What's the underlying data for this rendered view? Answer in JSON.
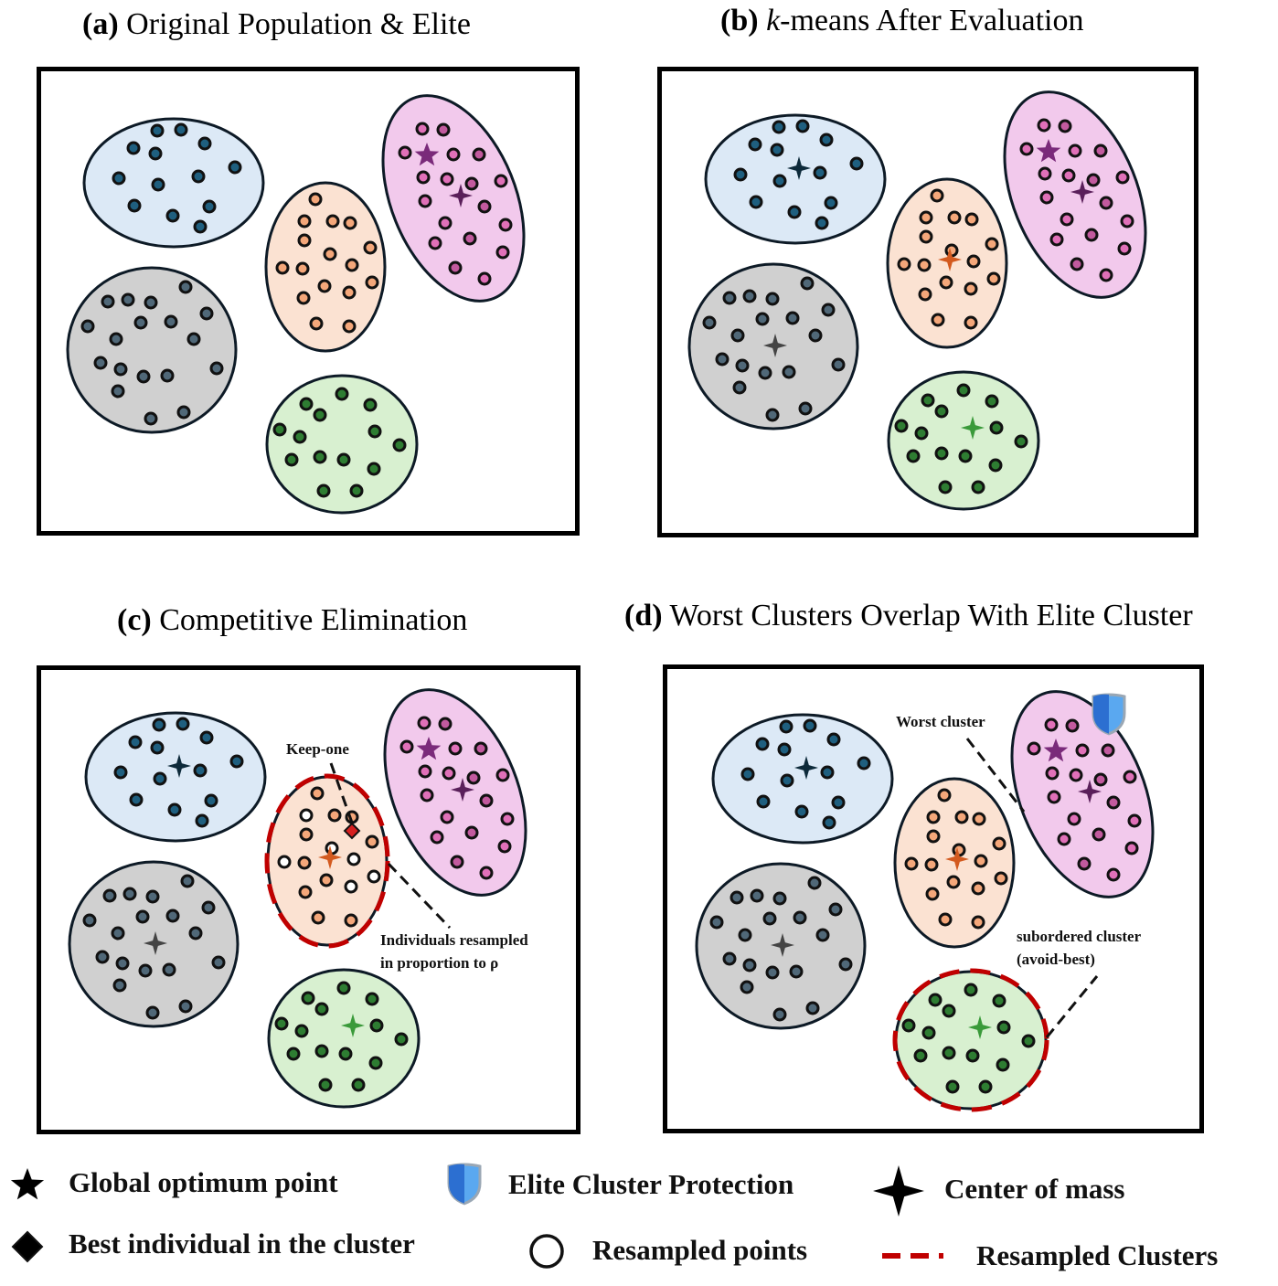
{
  "panels": {
    "a": {
      "tag": "(a)",
      "title": "Original Population & Elite"
    },
    "b": {
      "tag": "(b)",
      "title_italic": "k",
      "title": "-means After Evaluation"
    },
    "c": {
      "tag": "(c)",
      "title": "Competitive Elimination"
    },
    "d": {
      "tag": "(d)",
      "title": "Worst Clusters Overlap With Elite Cluster"
    }
  },
  "annotations": {
    "keep_one": "Keep-one",
    "resampled_line1": "Individuals resampled",
    "resampled_line2": "in proportion to ρ",
    "worst_cluster": "Worst cluster",
    "subordered_line1": "subordered cluster",
    "subordered_line2": "(avoid-best)"
  },
  "legend": {
    "global_optimum": "Global optimum point",
    "elite_protection": "Elite Cluster Protection",
    "center_of_mass": "Center of  mass",
    "best_individual": "Best individual in the cluster",
    "resampled_points": "Resampled points",
    "resampled_clusters": "Resampled Clusters"
  },
  "colors": {
    "blue_fill": "#dce9f6",
    "blue_dot": "#1f5f7f",
    "orange_fill": "#fbe2d2",
    "orange_dot": "#f4a77a",
    "pink_fill": "#f2c9ec",
    "pink_dot": "#e070b8",
    "gray_fill": "#d0d0d0",
    "gray_dot": "#506878",
    "green_fill": "#d8f0d0",
    "green_dot": "#2e7d32",
    "purple_star": "#7a2a7a",
    "red_dashed": "#c00000"
  },
  "icons": {
    "global_optimum": "star-icon",
    "elite_protection": "shield-icon",
    "center_of_mass": "four-point-star-icon",
    "best_individual": "diamond-icon",
    "resampled_points": "hollow-circle-icon",
    "resampled_clusters": "dashed-line-icon"
  }
}
